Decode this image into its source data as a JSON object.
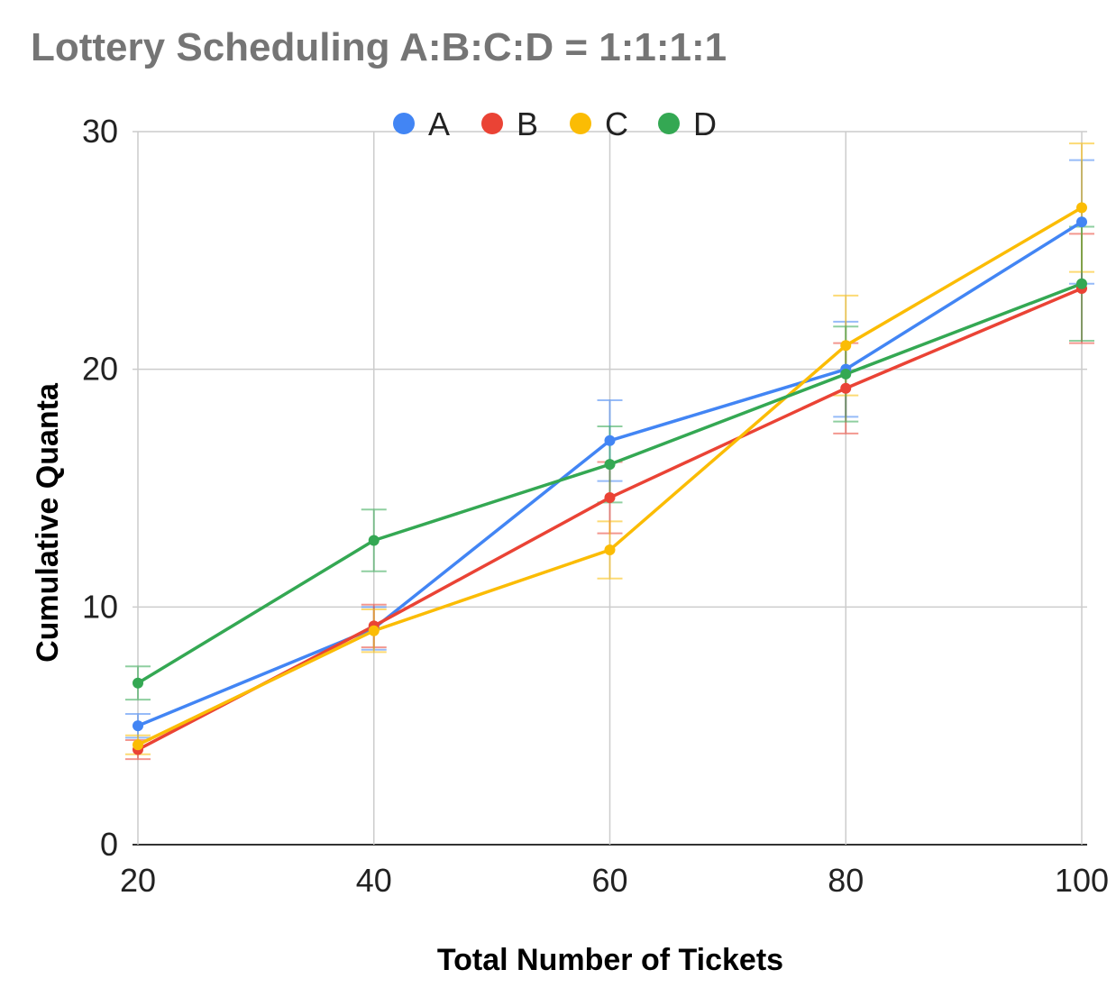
{
  "chart_data": {
    "type": "line",
    "title": "Lottery Scheduling A:B:C:D = 1:1:1:1",
    "xlabel": "Total Number of Tickets",
    "ylabel": "Cumulative Quanta",
    "x": [
      20,
      40,
      60,
      80,
      100
    ],
    "x_ticks": [
      "20",
      "40",
      "60",
      "80",
      "100"
    ],
    "y_ticks": [
      "0",
      "10",
      "20",
      "30"
    ],
    "xlim": [
      20,
      100
    ],
    "ylim": [
      0,
      30
    ],
    "grid": true,
    "legend_position": "top-center",
    "error_bars": true,
    "series": [
      {
        "name": "A",
        "color": "#4285F4",
        "values": [
          5.0,
          9.1,
          17.0,
          20.0,
          26.2
        ],
        "error": [
          0.5,
          0.9,
          1.7,
          2.0,
          2.6
        ]
      },
      {
        "name": "B",
        "color": "#EA4335",
        "values": [
          4.0,
          9.2,
          14.6,
          19.2,
          23.4
        ],
        "error": [
          0.4,
          0.9,
          1.5,
          1.9,
          2.3
        ]
      },
      {
        "name": "C",
        "color": "#FBBC04",
        "values": [
          4.2,
          9.0,
          12.4,
          21.0,
          26.8
        ],
        "error": [
          0.4,
          0.9,
          1.2,
          2.1,
          2.7
        ]
      },
      {
        "name": "D",
        "color": "#34A853",
        "values": [
          6.8,
          12.8,
          16.0,
          19.8,
          23.6
        ],
        "error": [
          0.7,
          1.3,
          1.6,
          2.0,
          2.4
        ]
      }
    ]
  }
}
